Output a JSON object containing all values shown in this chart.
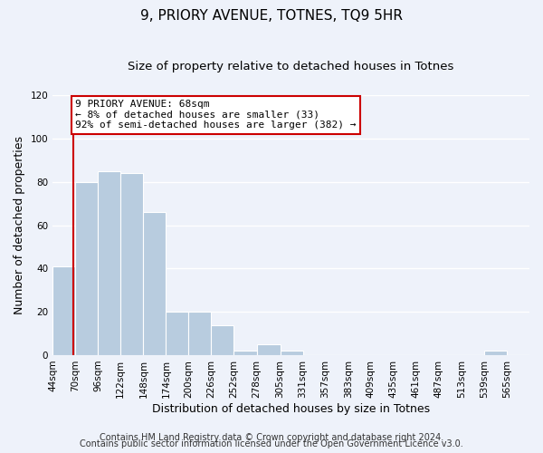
{
  "title": "9, PRIORY AVENUE, TOTNES, TQ9 5HR",
  "subtitle": "Size of property relative to detached houses in Totnes",
  "xlabel": "Distribution of detached houses by size in Totnes",
  "ylabel": "Number of detached properties",
  "bin_labels": [
    "44sqm",
    "70sqm",
    "96sqm",
    "122sqm",
    "148sqm",
    "174sqm",
    "200sqm",
    "226sqm",
    "252sqm",
    "278sqm",
    "305sqm",
    "331sqm",
    "357sqm",
    "383sqm",
    "409sqm",
    "435sqm",
    "461sqm",
    "487sqm",
    "513sqm",
    "539sqm",
    "565sqm"
  ],
  "bar_values": [
    41,
    80,
    85,
    84,
    66,
    20,
    20,
    14,
    2,
    5,
    2,
    0,
    0,
    0,
    0,
    0,
    0,
    0,
    0,
    2,
    0
  ],
  "bar_color": "#b8ccdf",
  "highlight_color": "#cc0000",
  "property_line_x": 68,
  "bin_edges_values": [
    44,
    70,
    96,
    122,
    148,
    174,
    200,
    226,
    252,
    278,
    305,
    331,
    357,
    383,
    409,
    435,
    461,
    487,
    513,
    539,
    565,
    591
  ],
  "annotation_title": "9 PRIORY AVENUE: 68sqm",
  "annotation_line1": "← 8% of detached houses are smaller (33)",
  "annotation_line2": "92% of semi-detached houses are larger (382) →",
  "annotation_box_facecolor": "#ffffff",
  "annotation_box_edgecolor": "#cc0000",
  "ylim": [
    0,
    120
  ],
  "yticks": [
    0,
    20,
    40,
    60,
    80,
    100,
    120
  ],
  "footer1": "Contains HM Land Registry data © Crown copyright and database right 2024.",
  "footer2": "Contains public sector information licensed under the Open Government Licence v3.0.",
  "background_color": "#eef2fa",
  "grid_color": "#ffffff",
  "title_fontsize": 11,
  "subtitle_fontsize": 9.5,
  "axis_label_fontsize": 9,
  "tick_fontsize": 7.5,
  "annotation_fontsize": 8,
  "footer_fontsize": 7
}
